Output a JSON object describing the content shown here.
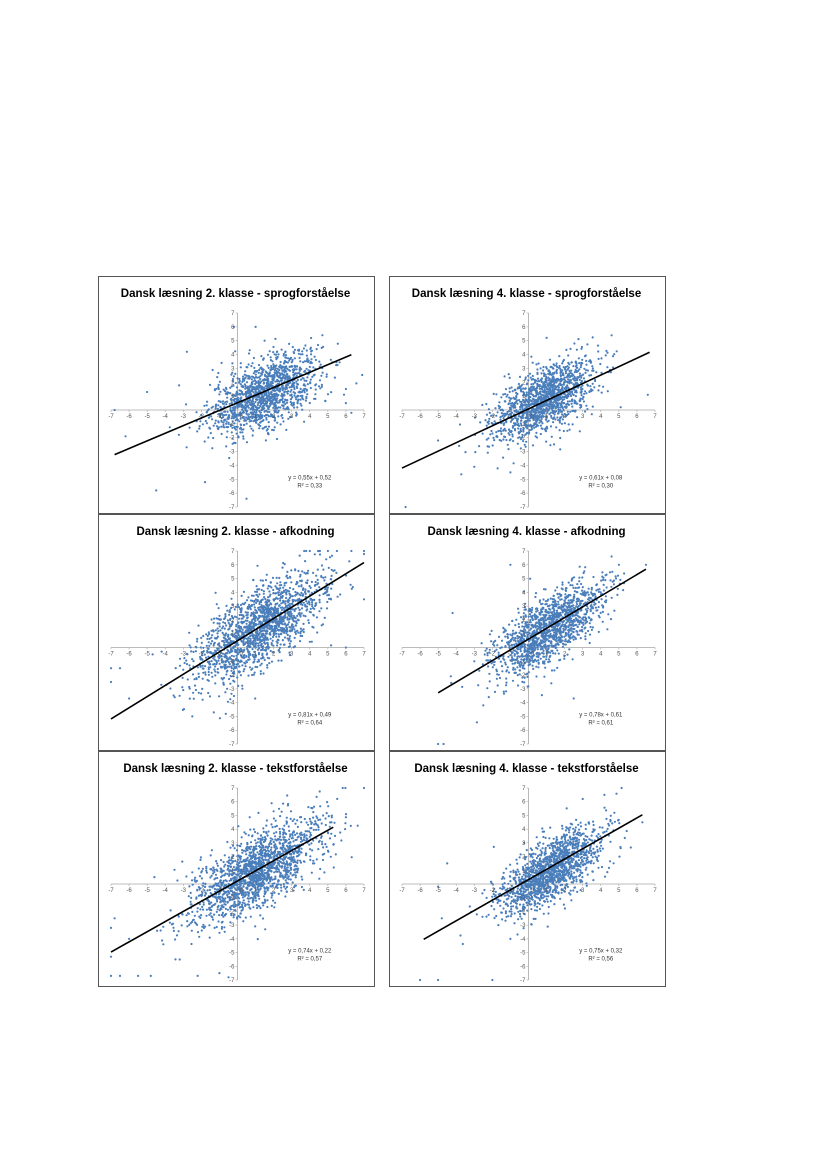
{
  "colors": {
    "points": "#4a7ebb",
    "trend": "#000000",
    "axis": "#a6a6a6",
    "border": "#555555"
  },
  "chart_data": [
    {
      "type": "scatter",
      "title": "Dansk læsning 2. klasse - sprogforståelse",
      "xlim": [
        -7,
        7
      ],
      "ylim": [
        -7,
        7
      ],
      "x_ticks": [
        -7,
        -6,
        -5,
        -4,
        -3,
        -2,
        -1,
        0,
        1,
        2,
        3,
        4,
        5,
        6,
        7
      ],
      "y_ticks": [
        -7,
        -6,
        -5,
        -4,
        -3,
        -2,
        -1,
        0,
        1,
        2,
        3,
        4,
        5,
        6,
        7
      ],
      "trendline": {
        "slope": 0.55,
        "intercept": 0.52,
        "x_range": [
          -6.8,
          6.3
        ],
        "equation": "y = 0,55x + 0,52",
        "r2": "R² = 0,33"
      },
      "points": {
        "center": [
          1.5,
          1.2
        ],
        "spread": [
          1.5,
          1.6
        ],
        "count": 1400,
        "samples": [
          [
            -6.8,
            0.0
          ],
          [
            -2.8,
            4.2
          ],
          [
            -4.5,
            -5.8
          ],
          [
            -1.8,
            -5.2
          ],
          [
            0.5,
            -6.4
          ],
          [
            1.0,
            6.0
          ],
          [
            -0.2,
            6.0
          ],
          [
            4.7,
            5.4
          ],
          [
            6.3,
            -0.2
          ],
          [
            6.0,
            0.5
          ],
          [
            -5.0,
            1.3
          ],
          [
            -6.2,
            -1.9
          ]
        ]
      }
    },
    {
      "type": "scatter",
      "title": "Dansk læsning 4. klasse - sprogforståelse",
      "xlim": [
        -7,
        7
      ],
      "ylim": [
        -7,
        7
      ],
      "x_ticks": [
        -7,
        -6,
        -5,
        -4,
        -3,
        -2,
        -1,
        0,
        1,
        2,
        3,
        4,
        5,
        6,
        7
      ],
      "y_ticks": [
        -7,
        -6,
        -5,
        -4,
        -3,
        -2,
        -1,
        0,
        1,
        2,
        3,
        4,
        5,
        6,
        7
      ],
      "trendline": {
        "slope": 0.61,
        "intercept": 0.08,
        "x_range": [
          -7.0,
          6.7
        ],
        "equation": "y = 0,61x + 0,08",
        "r2": "R² = 0,30"
      },
      "points": {
        "center": [
          0.8,
          0.7
        ],
        "spread": [
          1.4,
          1.5
        ],
        "count": 1400,
        "samples": [
          [
            -6.8,
            -7.0
          ],
          [
            6.6,
            1.1
          ],
          [
            3.5,
            -0.3
          ],
          [
            -1.0,
            -4.5
          ],
          [
            1.0,
            5.2
          ],
          [
            2.2,
            3.4
          ],
          [
            -3.0,
            -4.1
          ],
          [
            -5.0,
            -2.2
          ],
          [
            5.1,
            0.2
          ]
        ]
      }
    },
    {
      "type": "scatter",
      "title": "Dansk læsning 2. klasse - afkodning",
      "xlim": [
        -7,
        7
      ],
      "ylim": [
        -7,
        7
      ],
      "x_ticks": [
        -7,
        -6,
        -5,
        -4,
        -3,
        -2,
        -1,
        0,
        1,
        2,
        3,
        4,
        5,
        6,
        7
      ],
      "y_ticks": [
        -7,
        -6,
        -5,
        -4,
        -3,
        -2,
        -1,
        0,
        1,
        2,
        3,
        4,
        5,
        6,
        7
      ],
      "trendline": {
        "slope": 0.81,
        "intercept": 0.49,
        "x_range": [
          -7.0,
          7.0
        ],
        "equation": "y = 0,81x + 0,49",
        "r2": "R² = 0,64"
      },
      "points": {
        "center": [
          1.2,
          1.4
        ],
        "spread": [
          1.8,
          1.9
        ],
        "count": 1700,
        "samples": [
          [
            4.0,
            7.0
          ],
          [
            4.5,
            7.0
          ],
          [
            5.0,
            7.0
          ],
          [
            5.5,
            7.0
          ],
          [
            6.3,
            7.0
          ],
          [
            7.0,
            7.0
          ],
          [
            3.8,
            7.0
          ],
          [
            -7.0,
            -1.5
          ],
          [
            -7.0,
            -2.5
          ],
          [
            -6.0,
            -3.7
          ],
          [
            -6.5,
            -1.5
          ],
          [
            -4.7,
            -0.5
          ],
          [
            -4.2,
            -0.3
          ],
          [
            -2.5,
            -5.0
          ],
          [
            7.0,
            3.5
          ],
          [
            6.0,
            0.0
          ]
        ]
      }
    },
    {
      "type": "scatter",
      "title": "Dansk læsning 4. klasse - afkodning",
      "xlim": [
        -7,
        7
      ],
      "ylim": [
        -7,
        7
      ],
      "x_ticks": [
        -7,
        -6,
        -5,
        -4,
        -3,
        -2,
        -1,
        0,
        1,
        2,
        3,
        4,
        5,
        6,
        7
      ],
      "y_ticks": [
        -7,
        -6,
        -5,
        -4,
        -3,
        -2,
        -1,
        0,
        1,
        2,
        3,
        4,
        5,
        6,
        7
      ],
      "trendline": {
        "slope": 0.78,
        "intercept": 0.61,
        "x_range": [
          -5.0,
          6.5
        ],
        "equation": "y = 0,78x + 0,61",
        "r2": "R² = 0,61"
      },
      "points": {
        "center": [
          1.1,
          1.3
        ],
        "spread": [
          1.5,
          1.6
        ],
        "count": 1500,
        "samples": [
          [
            -5.0,
            -7.0
          ],
          [
            -4.7,
            -7.0
          ],
          [
            -4.2,
            2.5
          ],
          [
            -2.5,
            -4.2
          ],
          [
            2.5,
            -3.7
          ],
          [
            6.5,
            6.0
          ],
          [
            5.0,
            6.0
          ],
          [
            -1.0,
            6.0
          ],
          [
            -3.0,
            -1.0
          ]
        ]
      }
    },
    {
      "type": "scatter",
      "title": "Dansk læsning 2. klasse - tekstforståelse",
      "xlim": [
        -7,
        7
      ],
      "ylim": [
        -7,
        7
      ],
      "x_ticks": [
        -7,
        -6,
        -5,
        -4,
        -3,
        -2,
        -1,
        0,
        1,
        2,
        3,
        4,
        5,
        6,
        7
      ],
      "y_ticks": [
        -7,
        -6,
        -5,
        -4,
        -3,
        -2,
        -1,
        0,
        1,
        2,
        3,
        4,
        5,
        6,
        7
      ],
      "trendline": {
        "slope": 0.74,
        "intercept": 0.22,
        "x_range": [
          -7.0,
          5.3
        ],
        "equation": "y = 0,74x + 0,22",
        "r2": "R² = 0,57"
      },
      "points": {
        "center": [
          1.0,
          0.9
        ],
        "spread": [
          1.8,
          1.8
        ],
        "count": 1700,
        "samples": [
          [
            -7.0,
            -6.7
          ],
          [
            -6.5,
            -6.7
          ],
          [
            -5.5,
            -6.7
          ],
          [
            -4.8,
            -6.7
          ],
          [
            -2.2,
            -6.7
          ],
          [
            -1.0,
            -6.5
          ],
          [
            -0.5,
            -6.8
          ],
          [
            -6.8,
            -2.5
          ],
          [
            -7.0,
            -5.3
          ],
          [
            -6.0,
            -4.0
          ],
          [
            -4.6,
            0.5
          ],
          [
            5.2,
            4.5
          ],
          [
            2.0,
            5.3
          ],
          [
            -7.0,
            -3.2
          ]
        ]
      }
    },
    {
      "type": "scatter",
      "title": "Dansk læsning 4. klasse - tekstforståelse",
      "xlim": [
        -7,
        7
      ],
      "ylim": [
        -7,
        7
      ],
      "x_ticks": [
        -7,
        -6,
        -5,
        -4,
        -3,
        -2,
        -1,
        0,
        1,
        2,
        3,
        4,
        5,
        6,
        7
      ],
      "y_ticks": [
        -7,
        -6,
        -5,
        -4,
        -3,
        -2,
        -1,
        0,
        1,
        2,
        3,
        4,
        5,
        6,
        7
      ],
      "trendline": {
        "slope": 0.75,
        "intercept": 0.32,
        "x_range": [
          -5.8,
          6.3
        ],
        "equation": "y = 0,75x + 0,32",
        "r2": "R² = 0,56"
      },
      "points": {
        "center": [
          1.2,
          1.0
        ],
        "spread": [
          1.4,
          1.5
        ],
        "count": 1500,
        "samples": [
          [
            -6.0,
            -7.0
          ],
          [
            -5.0,
            -7.0
          ],
          [
            -2.0,
            -7.0
          ],
          [
            -4.5,
            1.5
          ],
          [
            -1.0,
            -4.0
          ],
          [
            4.2,
            6.5
          ],
          [
            3.0,
            6.2
          ],
          [
            -4.8,
            -2.5
          ],
          [
            6.3,
            4.5
          ],
          [
            -5.0,
            -0.2
          ]
        ]
      }
    }
  ]
}
